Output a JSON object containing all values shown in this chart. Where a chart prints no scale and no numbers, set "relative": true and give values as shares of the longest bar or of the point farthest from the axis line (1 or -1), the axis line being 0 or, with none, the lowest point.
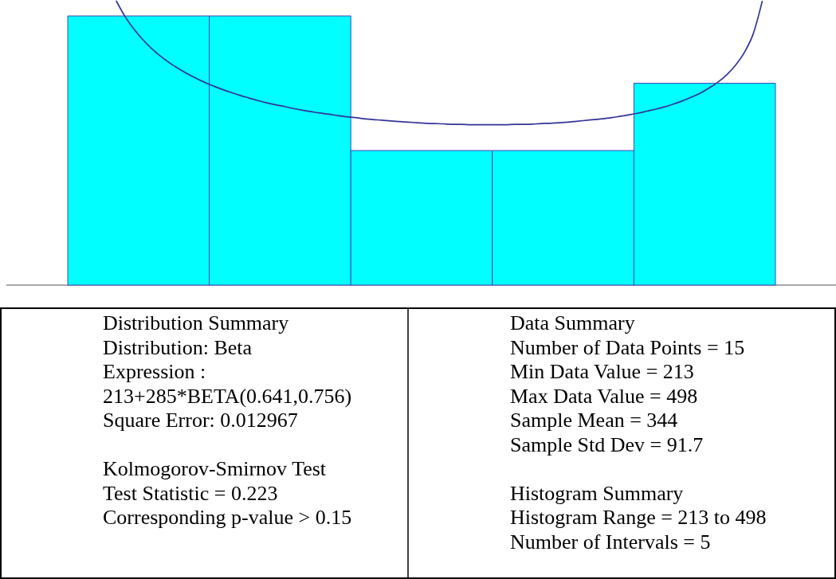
{
  "chart_data": [
    {
      "type": "bar",
      "relative": true,
      "categories": [
        null,
        null,
        null,
        null,
        null
      ],
      "color": "#00ffff",
      "values": [
        1,
        1,
        0.5,
        0.5,
        0.75
      ],
      "annotations": [
        "Distribution Summary\nDistribution: Beta\nExpression :\n213+285*BETA(0.641,0.756)\nSquare Error: 0.012967",
        "Kolmogorov-Smirnov Test\nTest Statistic = 0.223\nCorresponding p-value > 0.15",
        "Data Summary\nNumber of Data Points = 15\nMin Data Value = 213\nMax Data Value = 498\nSample Mean = 344\nSample Std Dev = 91.7",
        "Histogram Summary\nHistogram Range = 213 to 498\nNumber of Intervals = 5"
      ]
    },
    {
      "type": "line",
      "relative": true,
      "color": "#333399",
      "categories": [
        null,
        null,
        null,
        null,
        null,
        null,
        null,
        null,
        null,
        null,
        null,
        null,
        null,
        null,
        null,
        null,
        null,
        null,
        null,
        null,
        null,
        null,
        null,
        null,
        null,
        null,
        null,
        null,
        null,
        null,
        null,
        null,
        null,
        null,
        null,
        null,
        null,
        null,
        null,
        null,
        null,
        null,
        null,
        null,
        null,
        null,
        null,
        null,
        null,
        null,
        null,
        null,
        null,
        null,
        null,
        null,
        null,
        null,
        null,
        null,
        null,
        null,
        null,
        null,
        null,
        null,
        null,
        null,
        null,
        null,
        null,
        null,
        null,
        null,
        null,
        null,
        null,
        null,
        null,
        null
      ],
      "values": [
        null,
        null,
        null,
        null,
        null,
        1.0,
        0.945,
        0.901,
        0.864,
        0.833,
        0.806,
        0.783,
        0.763,
        0.745,
        0.729,
        0.714,
        0.701,
        0.689,
        0.678,
        0.668,
        0.659,
        0.65,
        0.642,
        0.635,
        0.629,
        0.622,
        0.616,
        0.611,
        0.606,
        0.602,
        0.597,
        0.593,
        0.59,
        0.586,
        0.583,
        0.581,
        0.578,
        0.576,
        0.574,
        0.572,
        0.57,
        0.569,
        0.568,
        0.566,
        0.566,
        0.565,
        0.565,
        0.565,
        0.565,
        0.565,
        0.566,
        0.566,
        0.567,
        0.569,
        0.57,
        0.572,
        0.574,
        0.577,
        0.58,
        0.583,
        0.586,
        0.59,
        0.595,
        0.6,
        0.606,
        0.613,
        0.62,
        0.628,
        0.638,
        0.649,
        0.662,
        0.676,
        0.694,
        0.715,
        0.741,
        0.775,
        0.82,
        0.886,
        0.999,
        null
      ]
    }
  ]
}
